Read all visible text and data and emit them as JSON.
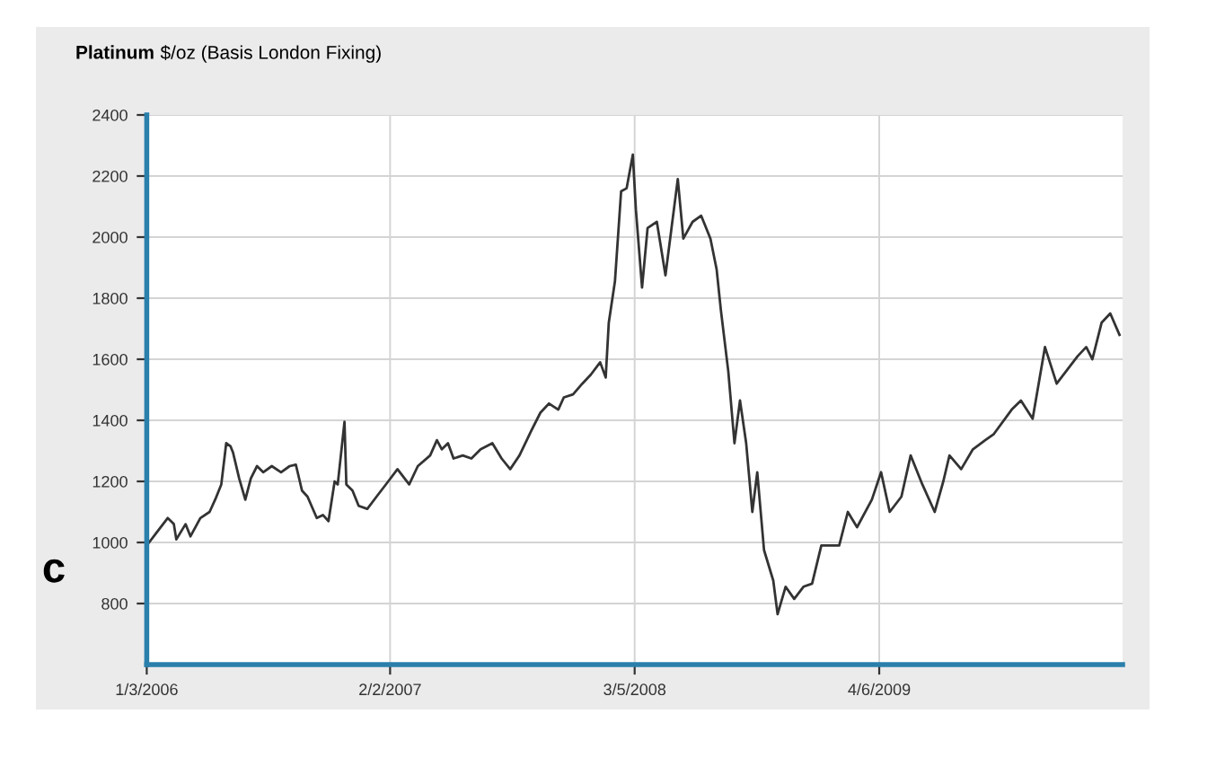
{
  "chart_data": {
    "type": "line",
    "title": "Platinum",
    "subtitle": "$/oz (Basis London Fixing)",
    "annotations": [
      "c"
    ],
    "x": [
      "2006-01-03",
      "2006-01-18",
      "2006-02-06",
      "2006-02-16",
      "2006-02-20",
      "2006-03-07",
      "2006-03-15",
      "2006-03-31",
      "2006-04-15",
      "2006-04-24",
      "2006-05-04",
      "2006-05-12",
      "2006-05-19",
      "2006-05-23",
      "2006-06-02",
      "2006-06-12",
      "2006-06-21",
      "2006-07-01",
      "2006-07-11",
      "2006-07-25",
      "2006-08-09",
      "2006-08-23",
      "2006-09-02",
      "2006-09-12",
      "2006-09-21",
      "2006-10-06",
      "2006-10-16",
      "2006-10-25",
      "2006-11-04",
      "2006-11-09",
      "2006-11-20",
      "2006-11-23",
      "2006-12-03",
      "2006-12-13",
      "2006-12-27",
      "2007-01-11",
      "2007-01-30",
      "2007-02-14",
      "2007-03-05",
      "2007-03-19",
      "2007-04-08",
      "2007-04-19",
      "2007-04-27",
      "2007-05-07",
      "2007-05-16",
      "2007-05-31",
      "2007-06-14",
      "2007-06-29",
      "2007-07-18",
      "2007-08-02",
      "2007-08-16",
      "2007-08-31",
      "2007-09-19",
      "2007-10-04",
      "2007-10-18",
      "2007-11-02",
      "2007-11-11",
      "2007-11-26",
      "2007-12-11",
      "2007-12-25",
      "2008-01-09",
      "2008-01-18",
      "2008-01-23",
      "2008-02-02",
      "2008-02-12",
      "2008-02-21",
      "2008-03-02",
      "2008-03-07",
      "2008-03-17",
      "2008-03-26",
      "2008-04-10",
      "2008-04-24",
      "2008-05-14",
      "2008-05-23",
      "2008-06-07",
      "2008-06-21",
      "2008-07-06",
      "2008-07-16",
      "2008-07-23",
      "2008-08-04",
      "2008-08-14",
      "2008-08-23",
      "2008-09-02",
      "2008-09-12",
      "2008-09-20",
      "2008-10-01",
      "2008-10-16",
      "2008-10-23",
      "2008-11-05",
      "2008-11-19",
      "2008-12-04",
      "2008-12-18",
      "2009-01-02",
      "2009-01-31",
      "2009-02-14",
      "2009-03-01",
      "2009-03-25",
      "2009-04-09",
      "2009-04-23",
      "2009-05-12",
      "2009-05-27",
      "2009-06-15",
      "2009-07-05",
      "2009-07-19",
      "2009-07-29",
      "2009-08-17",
      "2009-09-05",
      "2009-09-25",
      "2009-10-09",
      "2009-11-07",
      "2009-11-22",
      "2009-12-11",
      "2009-12-31",
      "2010-01-19",
      "2010-02-22",
      "2010-03-08",
      "2010-03-18",
      "2010-04-02",
      "2010-04-16",
      "2010-05-01"
    ],
    "series": [
      {
        "color": "#333333",
        "values": [
          990,
          1030,
          1080,
          1060,
          1010,
          1060,
          1020,
          1080,
          1100,
          1140,
          1190,
          1325,
          1315,
          1295,
          1210,
          1140,
          1210,
          1250,
          1230,
          1250,
          1230,
          1250,
          1255,
          1170,
          1150,
          1080,
          1090,
          1070,
          1200,
          1190,
          1395,
          1190,
          1170,
          1120,
          1110,
          1150,
          1200,
          1240,
          1190,
          1250,
          1285,
          1335,
          1305,
          1325,
          1275,
          1285,
          1275,
          1305,
          1325,
          1275,
          1240,
          1285,
          1365,
          1425,
          1455,
          1435,
          1475,
          1485,
          1520,
          1550,
          1590,
          1540,
          1720,
          1855,
          2150,
          2160,
          2270,
          2090,
          1835,
          2030,
          2050,
          1875,
          2190,
          1995,
          2050,
          2070,
          1995,
          1895,
          1760,
          1560,
          1325,
          1465,
          1325,
          1100,
          1230,
          975,
          875,
          765,
          855,
          815,
          855,
          865,
          990,
          990,
          1100,
          1050,
          1140,
          1230,
          1100,
          1150,
          1285,
          1190,
          1100,
          1200,
          1285,
          1240,
          1305,
          1335,
          1355,
          1435,
          1465,
          1405,
          1640,
          1520,
          1610,
          1640,
          1600,
          1720,
          1750,
          1680
        ]
      }
    ],
    "xlim": [
      "2006-01-03",
      "2010-05-06"
    ],
    "xticks": [
      {
        "value": "2006-01-03",
        "label": "1/3/2006"
      },
      {
        "value": "2007-02-02",
        "label": "2/2/2007"
      },
      {
        "value": "2008-03-05",
        "label": "3/5/2008"
      },
      {
        "value": "2009-04-06",
        "label": "4/6/2009"
      }
    ],
    "ylim": [
      600,
      2400
    ],
    "yticks": [
      800,
      1000,
      1200,
      1400,
      1600,
      1800,
      2000,
      2200,
      2400
    ],
    "grid": true,
    "legend": false,
    "marker": "none",
    "line_style": "solid"
  }
}
